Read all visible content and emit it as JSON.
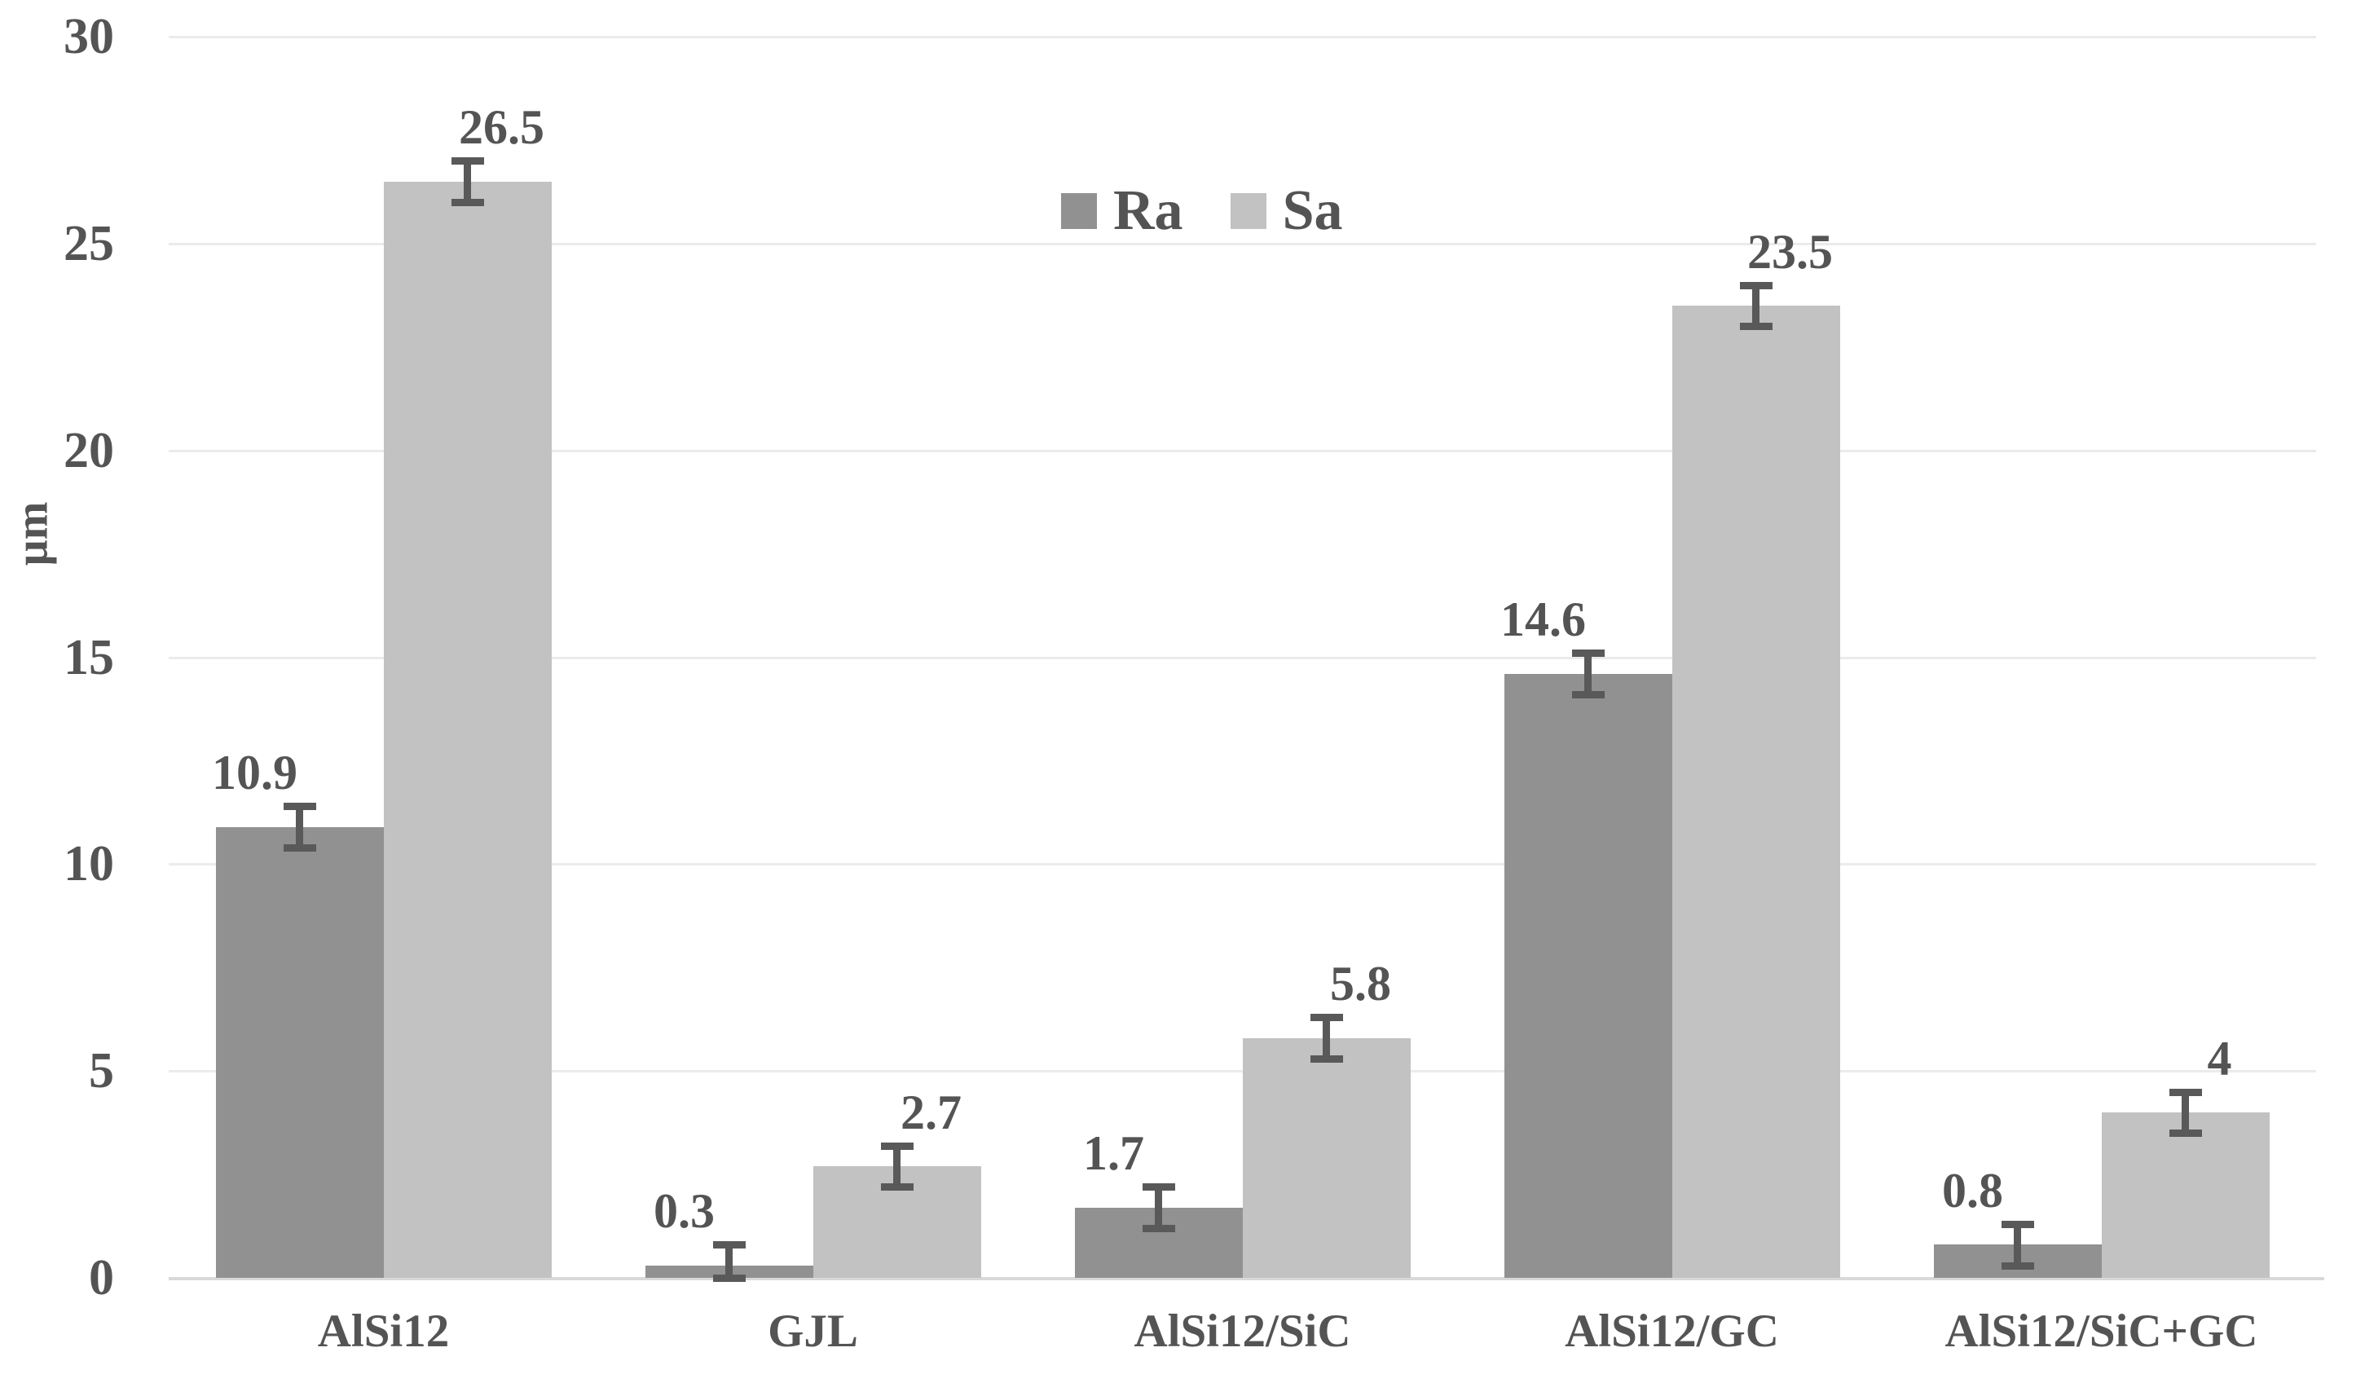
{
  "chart_data": {
    "type": "bar",
    "title": "",
    "ylabel": "µm",
    "xlabel": "",
    "categories": [
      "AlSi12",
      "GJL",
      "AlSi12/SiC",
      "AlSi12/GC",
      "AlSi12/SiC+GC"
    ],
    "series": [
      {
        "name": "Ra",
        "color": "#919191",
        "values": [
          10.9,
          0.3,
          1.7,
          14.6,
          0.8
        ],
        "labels": [
          "10.9",
          "0.3",
          "1.7",
          "14.6",
          "0.8"
        ]
      },
      {
        "name": "Sa",
        "color": "#c2c2c2",
        "values": [
          26.5,
          2.7,
          5.8,
          23.5,
          4
        ],
        "labels": [
          "26.5",
          "2.7",
          "5.8",
          "23.5",
          "4"
        ]
      }
    ],
    "error_bar_half": 0.5,
    "y_axis": {
      "min": 0,
      "max": 30,
      "step": 5,
      "ticks": [
        "0",
        "5",
        "10",
        "15",
        "20",
        "25",
        "30"
      ]
    },
    "legend": {
      "entries": [
        "Ra",
        "Sa"
      ],
      "position": "top-center"
    },
    "grid": true,
    "colors": {
      "text": "#545454",
      "error_bar": "#595959",
      "gridline": "#ebebeb",
      "axis_line": "#d9d9d9",
      "background": "#ffffff"
    }
  }
}
